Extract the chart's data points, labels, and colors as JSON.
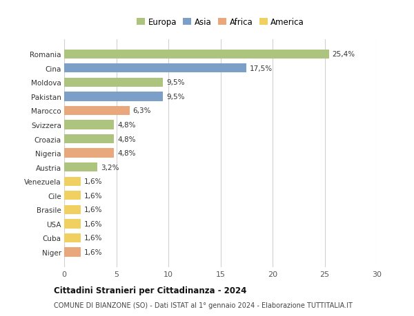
{
  "countries": [
    "Romania",
    "Cina",
    "Moldova",
    "Pakistan",
    "Marocco",
    "Svizzera",
    "Croazia",
    "Nigeria",
    "Austria",
    "Venezuela",
    "Cile",
    "Brasile",
    "USA",
    "Cuba",
    "Niger"
  ],
  "values": [
    25.4,
    17.5,
    9.5,
    9.5,
    6.3,
    4.8,
    4.8,
    4.8,
    3.2,
    1.6,
    1.6,
    1.6,
    1.6,
    1.6,
    1.6
  ],
  "labels": [
    "25,4%",
    "17,5%",
    "9,5%",
    "9,5%",
    "6,3%",
    "4,8%",
    "4,8%",
    "4,8%",
    "3,2%",
    "1,6%",
    "1,6%",
    "1,6%",
    "1,6%",
    "1,6%",
    "1,6%"
  ],
  "continents": [
    "Europa",
    "Asia",
    "Europa",
    "Asia",
    "Africa",
    "Europa",
    "Europa",
    "Africa",
    "Europa",
    "America",
    "America",
    "America",
    "America",
    "America",
    "Africa"
  ],
  "colors": {
    "Europa": "#adc47e",
    "Asia": "#7b9fc7",
    "Africa": "#e8a87c",
    "America": "#f0d060"
  },
  "legend_labels": [
    "Europa",
    "Asia",
    "Africa",
    "America"
  ],
  "xlim": [
    0,
    30
  ],
  "xticks": [
    0,
    5,
    10,
    15,
    20,
    25,
    30
  ],
  "title": "Cittadini Stranieri per Cittadinanza - 2024",
  "subtitle": "COMUNE DI BIANZONE (SO) - Dati ISTAT al 1° gennaio 2024 - Elaborazione TUTTITALIA.IT",
  "bg_color": "#ffffff",
  "grid_color": "#d0d0d0",
  "bar_height": 0.65
}
